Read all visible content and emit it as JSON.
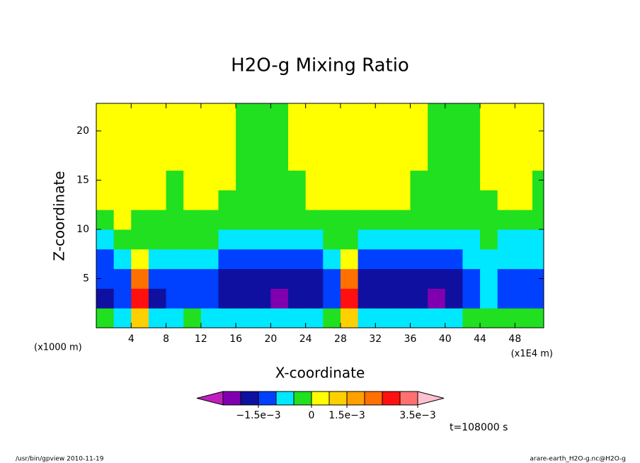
{
  "chart_data": {
    "type": "contour",
    "title": "H2O-g Mixing Ratio",
    "x_label": "X-coordinate",
    "y_label": "Z-coordinate",
    "x_units": "(x1E4 m)",
    "y_units": "(x1000 m)",
    "annotation": "t=108000 s",
    "footer_left": "/usr/bin/gpview  2010-11-19",
    "footer_right": "arare-earth_H2O-g.nc@H2O-g",
    "xlim": [
      0,
      51.3
    ],
    "ylim": [
      0,
      22.8
    ],
    "xticks": [
      4,
      8,
      12,
      16,
      20,
      24,
      28,
      32,
      36,
      40,
      44,
      48
    ],
    "yticks": [
      5,
      10,
      15,
      20
    ],
    "x": [
      1,
      3,
      5,
      7,
      9,
      11,
      13,
      15,
      17,
      19,
      21,
      23,
      25,
      27,
      29,
      31,
      33,
      35,
      37,
      39,
      41,
      43,
      45,
      47,
      49,
      51
    ],
    "z": [
      1,
      3,
      5,
      7,
      9,
      11,
      13,
      15,
      17,
      19,
      21,
      23
    ],
    "values": [
      [
        -0.0003,
        -0.0016,
        -0.0012,
        -0.0012,
        -0.0007,
        -0.0002,
        0.0003,
        0.0003,
        0.0003,
        0.0003,
        0.0003,
        0.0003
      ],
      [
        -0.0007,
        -0.0013,
        -0.0012,
        -0.0008,
        -0.0003,
        0.0002,
        0.0003,
        0.0003,
        0.0003,
        0.0003,
        0.0003,
        0.0003
      ],
      [
        0.001,
        0.0028,
        0.0022,
        0.0005,
        -0.0002,
        -0.0002,
        0.0002,
        0.0003,
        0.0003,
        0.0003,
        0.0003,
        0.0003
      ],
      [
        -0.0007,
        -0.0016,
        -0.0012,
        -0.0008,
        -0.0003,
        -0.0002,
        0.0003,
        0.0003,
        0.0003,
        0.0003,
        0.0003,
        0.0003
      ],
      [
        -0.0006,
        -0.0012,
        -0.0012,
        -0.0007,
        -0.0003,
        -0.0002,
        -0.0001,
        -0.0001,
        0.0003,
        0.0003,
        0.0003,
        0.0003
      ],
      [
        -0.0004,
        -0.0012,
        -0.0013,
        -0.0008,
        -0.0003,
        -0.0002,
        0.0003,
        0.0003,
        0.0003,
        0.0003,
        0.0003,
        0.0003
      ],
      [
        -0.0006,
        -0.0013,
        -0.0012,
        -0.0008,
        -0.0003,
        -0.0002,
        0.0003,
        0.0003,
        0.0003,
        0.0003,
        0.0003,
        0.0003
      ],
      [
        -0.0006,
        -0.0017,
        -0.0016,
        -0.0012,
        -0.0007,
        -0.0002,
        -0.0001,
        0.0002,
        0.0002,
        0.0002,
        0.0002,
        0.0002
      ],
      [
        -0.0006,
        -0.0018,
        -0.0017,
        -0.0012,
        -0.0007,
        -0.0002,
        -0.0001,
        -0.0001,
        -0.0001,
        -0.0001,
        -0.0001,
        -0.0001
      ],
      [
        -0.0006,
        -0.0019,
        -0.0018,
        -0.0012,
        -0.0007,
        -0.0002,
        -0.0001,
        -0.0001,
        -0.0001,
        -0.0001,
        -0.0001,
        -0.0001
      ],
      [
        -0.0006,
        -0.0022,
        -0.0018,
        -0.0012,
        -0.0007,
        -0.0002,
        -0.0001,
        -0.0001,
        -0.0001,
        -0.0001,
        -0.0001,
        -0.0001
      ],
      [
        -0.0006,
        -0.0018,
        -0.0017,
        -0.0012,
        -0.0007,
        -0.0002,
        -0.0001,
        -0.0001,
        0.0002,
        0.0002,
        0.0002,
        0.0002
      ],
      [
        -0.0006,
        -0.0017,
        -0.0016,
        -0.0012,
        -0.0008,
        -0.0002,
        0.0002,
        0.0003,
        0.0003,
        0.0003,
        0.0003,
        0.0003
      ],
      [
        -0.0004,
        -0.0012,
        -0.0012,
        -0.0008,
        -0.0004,
        -0.0002,
        0.0002,
        0.0003,
        0.0003,
        0.0003,
        0.0003,
        0.0003
      ],
      [
        0.001,
        0.0025,
        0.002,
        0.0005,
        -0.0002,
        -0.0002,
        0.0002,
        0.0003,
        0.0003,
        0.0003,
        0.0003,
        0.0003
      ],
      [
        -0.0006,
        -0.0017,
        -0.0016,
        -0.0012,
        -0.0007,
        -0.0002,
        0.0002,
        0.0003,
        0.0003,
        0.0003,
        0.0003,
        0.0003
      ],
      [
        -0.0006,
        -0.0018,
        -0.0017,
        -0.0012,
        -0.0007,
        -0.0002,
        0.0003,
        0.0003,
        0.0003,
        0.0003,
        0.0003,
        0.0003
      ],
      [
        -0.0006,
        -0.0018,
        -0.0017,
        -0.0012,
        -0.0007,
        -0.0002,
        0.0002,
        0.0003,
        0.0003,
        0.0003,
        0.0003,
        0.0003
      ],
      [
        -0.0006,
        -0.0019,
        -0.0017,
        -0.0012,
        -0.0007,
        -0.0002,
        -0.0001,
        -0.0001,
        0.0002,
        0.0002,
        0.0002,
        0.0002
      ],
      [
        -0.0006,
        -0.0021,
        -0.0017,
        -0.0012,
        -0.0008,
        -0.0002,
        -0.0001,
        -0.0001,
        -0.0001,
        -0.0001,
        -0.0001,
        -0.0001
      ],
      [
        -0.0006,
        -0.0018,
        -0.0016,
        -0.0012,
        -0.0008,
        -0.0003,
        -0.0001,
        -0.0001,
        -0.0001,
        -0.0001,
        -0.0001,
        -0.0001
      ],
      [
        -0.0004,
        -0.0012,
        -0.0012,
        -0.0008,
        -0.0006,
        -0.0002,
        -0.0001,
        -0.0001,
        -0.0001,
        -0.0001,
        -0.0001,
        -0.0001
      ],
      [
        -0.0004,
        -0.0008,
        -0.0008,
        -0.0007,
        -0.0004,
        -0.0002,
        -0.0001,
        0.0002,
        0.0003,
        0.0003,
        0.0003,
        0.0003
      ],
      [
        -0.0004,
        -0.0012,
        -0.0012,
        -0.0008,
        -0.0006,
        -0.0002,
        0.0002,
        0.0003,
        0.0003,
        0.0003,
        0.0003,
        0.0003
      ],
      [
        -0.0004,
        -0.0013,
        -0.0012,
        -0.0008,
        -0.0006,
        -0.0002,
        0.0002,
        0.0003,
        0.0003,
        0.0003,
        0.0003,
        0.0003
      ],
      [
        -0.0004,
        -0.0012,
        -0.0012,
        -0.0008,
        -0.0006,
        -0.0002,
        -0.0001,
        -0.0001,
        0.0002,
        0.0003,
        0.0003,
        0.0003
      ]
    ],
    "colorbar": {
      "levels": [
        -0.0025,
        -0.002,
        -0.0015,
        -0.001,
        -0.0005,
        0,
        0.00075,
        0.0015,
        0.002,
        0.0025,
        0.003,
        0.0035
      ],
      "colors": [
        "#c020c0",
        "#8000b0",
        "#1010a0",
        "#0040ff",
        "#00e8ff",
        "#20e020",
        "#ffff00",
        "#ffd000",
        "#ffa000",
        "#ff7000",
        "#ff1010",
        "#ff7070",
        "#ffc0d0"
      ],
      "ticks": [
        {
          "value": -0.0015,
          "label": "−1.5e−3"
        },
        {
          "value": 0,
          "label": "0"
        },
        {
          "value": 0.0015,
          "label": "1.5e−3"
        },
        {
          "value": 0.0035,
          "label": "3.5e−3"
        }
      ]
    }
  }
}
